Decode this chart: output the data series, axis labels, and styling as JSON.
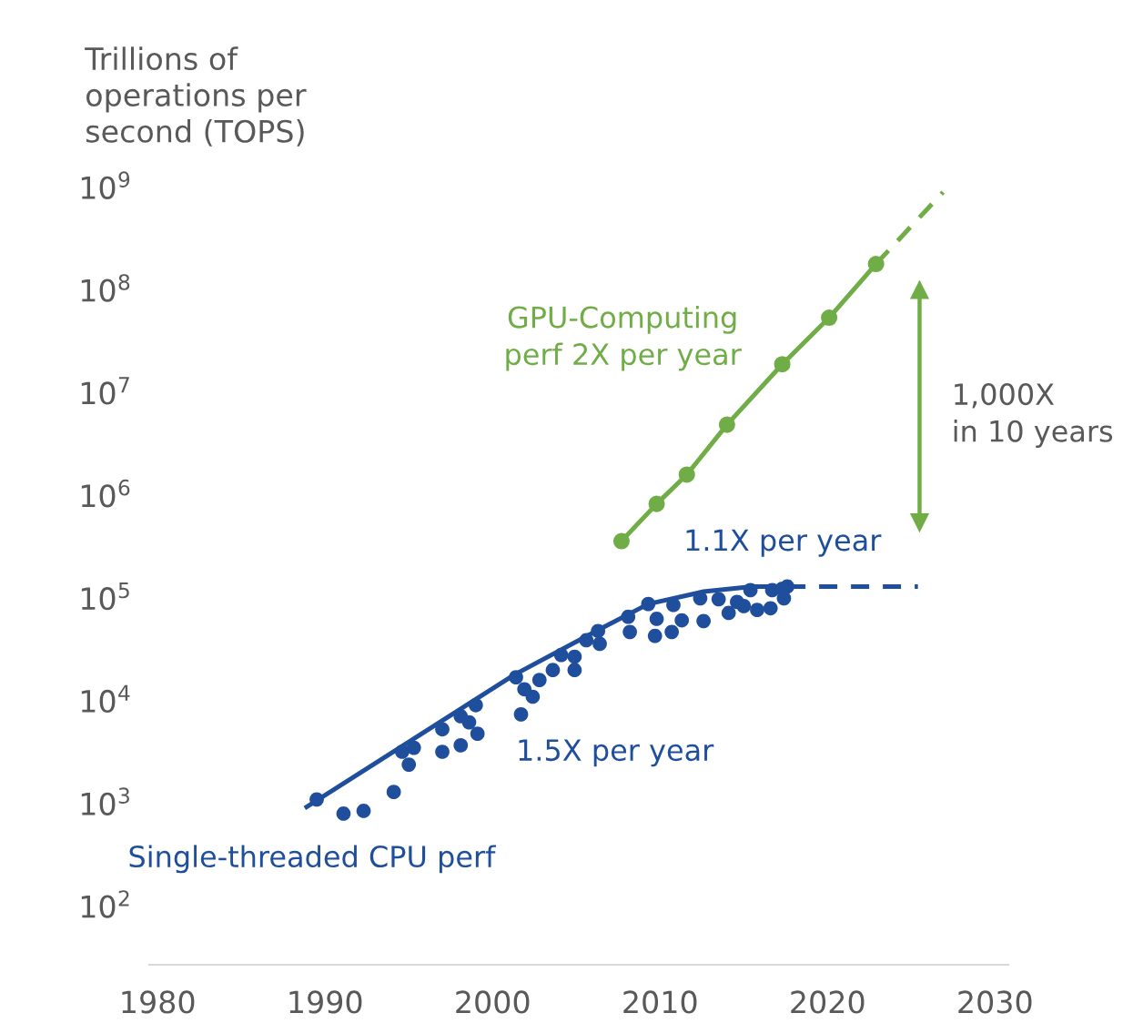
{
  "chart_data": {
    "type": "scatter",
    "ylabel": "Trillions of\noperations per\nsecond (TOPS)",
    "log": "y",
    "grid": false,
    "legend": false,
    "xlim": [
      1979.5,
      2030.8
    ],
    "ylim": [
      27,
      1000000000
    ],
    "xticks": [
      1980,
      1990,
      2000,
      2010,
      2020,
      2030
    ],
    "yticks": [
      {
        "value": 100,
        "label": "10$^{2}$"
      },
      {
        "value": 1000,
        "label": "10$^{3}$"
      },
      {
        "value": 10000,
        "label": "10$^{4}$"
      },
      {
        "value": 100000,
        "label": "10$^{5}$"
      },
      {
        "value": 1000000,
        "label": "10$^{6}$"
      },
      {
        "value": 10000000,
        "label": "10$^{7}$"
      },
      {
        "value": 100000000,
        "label": "10$^{8}$"
      },
      {
        "value": 1000000000,
        "label": "10$^{9}$"
      }
    ],
    "series": [
      {
        "color": "#1f4e9c",
        "marker": "circle",
        "x": [
          1989.5,
          1991.1,
          1992.3,
          1994.1,
          1994.6,
          1995.3,
          1995.0,
          1997.0,
          1997.0,
          1998.1,
          1998.6,
          1998.1,
          1999.1,
          1999.0,
          2001.4,
          2001.9,
          2002.4,
          2001.7,
          2002.8,
          2003.6,
          2004.1,
          2004.9,
          2004.9,
          2005.6,
          2006.3,
          2006.4,
          2008.1,
          2008.2,
          2009.3,
          2009.8,
          2009.7,
          2010.8,
          2011.3,
          2010.7,
          2012.4,
          2012.6,
          2013.5,
          2014.1,
          2014.6,
          2015.0,
          2015.8,
          2015.4,
          2016.6,
          2016.7,
          2017.4,
          2017.6,
          2017.3
        ],
        "values": [
          1100,
          800,
          850,
          1300,
          3200,
          3500,
          2400,
          5300,
          3200,
          7100,
          6200,
          3700,
          4800,
          9100,
          17000,
          13000,
          11000,
          7400,
          16000,
          20000,
          28000,
          27000,
          20000,
          39000,
          48000,
          36000,
          66000,
          47000,
          88000,
          63000,
          43000,
          86000,
          61000,
          47000,
          100000,
          60000,
          98000,
          72000,
          92000,
          84000,
          77000,
          120000,
          80000,
          120000,
          100000,
          130000,
          124000
        ]
      },
      {
        "type": "line",
        "color": "#1f4e9c",
        "marker": "none",
        "line_style": "solid",
        "x": [
          1988.9,
          2001.3,
          2006.2,
          2009.3,
          2012.6,
          2015.5,
          2017.6
        ],
        "values": [
          930,
          18000,
          48000,
          88000,
          116000,
          130000,
          130000
        ]
      },
      {
        "type": "line",
        "color": "#1f4e9c",
        "marker": "none",
        "line_style": "dashed",
        "x": [
          2017.6,
          2025.4
        ],
        "values": [
          130000,
          130000
        ]
      },
      {
        "type": "line",
        "color": "#70ad47",
        "marker": "circle",
        "line_style": "solid",
        "x": [
          2007.7,
          2009.8,
          2011.6,
          2014.0,
          2017.3,
          2020.1,
          2022.9
        ],
        "values": [
          360000,
          830000,
          1600000,
          4900000,
          19000000,
          54000000,
          180000000
        ]
      },
      {
        "type": "line",
        "color": "#70ad47",
        "marker": "none",
        "line_style": "dashed",
        "x": [
          2022.9,
          2026.9
        ],
        "values": [
          180000000,
          900000000
        ]
      },
      {
        "type": "line",
        "color": "#70ad47",
        "marker": "triangle",
        "line_style": "solid",
        "x": [
          2025.5,
          2025.5
        ],
        "values": [
          100000000,
          550000
        ]
      }
    ],
    "annotations": [
      "Single-threaded CPU perf",
      "1.5X per year",
      "1.1X per year",
      "GPU-Computing\nperf 2X per year",
      "1,000X\nin 10 years"
    ]
  }
}
